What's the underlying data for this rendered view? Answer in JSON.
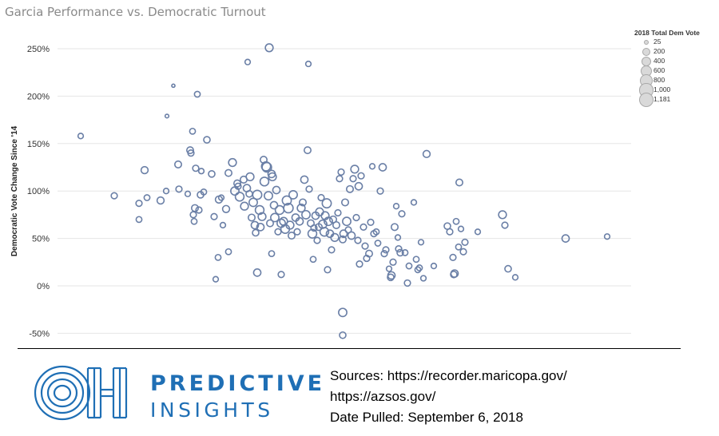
{
  "title": "Garcia Performance vs. Democratic Turnout",
  "chart_data": {
    "type": "scatter",
    "title": "Garcia Performance vs. Democratic Turnout",
    "xlabel": "",
    "ylabel": "Democratic Vote Change Since '14",
    "y_ticks": [
      250,
      200,
      150,
      100,
      50,
      0,
      -50
    ],
    "y_tick_labels": [
      "250%",
      "200%",
      "150%",
      "100%",
      "50%",
      "0%",
      "-50%"
    ],
    "ylim": [
      -62,
      264
    ],
    "x_axis_labels_shown": false,
    "grid": true,
    "legend": {
      "title": "2018 Total Dem Vote",
      "placement": "top-right",
      "entries": [
        "25",
        "200",
        "400",
        "600",
        "800",
        "1,000",
        "1,181"
      ]
    },
    "color": "#6a7fa6",
    "points": [
      [
        101,
        158,
        200
      ],
      [
        143,
        95,
        300
      ],
      [
        174,
        70,
        250
      ],
      [
        181,
        122,
        450
      ],
      [
        184,
        93,
        250
      ],
      [
        174,
        87,
        300
      ],
      [
        201,
        90,
        450
      ],
      [
        208,
        100,
        200
      ],
      [
        209,
        179,
        50
      ],
      [
        217,
        211,
        25
      ],
      [
        223,
        128,
        400
      ],
      [
        224,
        102,
        300
      ],
      [
        235,
        97,
        200
      ],
      [
        238,
        143,
        400
      ],
      [
        239,
        140,
        300
      ],
      [
        241,
        163,
        250
      ],
      [
        247,
        202,
        250
      ],
      [
        245,
        124,
        300
      ],
      [
        242,
        75,
        300
      ],
      [
        243,
        68,
        250
      ],
      [
        244,
        82,
        400
      ],
      [
        249,
        80,
        300
      ],
      [
        251,
        96,
        350
      ],
      [
        252,
        121,
        200
      ],
      [
        255,
        99,
        250
      ],
      [
        259,
        154,
        350
      ],
      [
        265,
        118,
        350
      ],
      [
        268,
        73,
        300
      ],
      [
        274,
        91,
        450
      ],
      [
        277,
        93,
        200
      ],
      [
        279,
        64,
        200
      ],
      [
        283,
        81,
        450
      ],
      [
        286,
        119,
        400
      ],
      [
        291,
        130,
        600
      ],
      [
        294,
        100,
        700
      ],
      [
        297,
        108,
        400
      ],
      [
        298,
        105,
        300
      ],
      [
        300,
        94,
        800
      ],
      [
        305,
        112,
        400
      ],
      [
        306,
        84,
        600
      ],
      [
        309,
        103,
        500
      ],
      [
        312,
        97,
        350
      ],
      [
        313,
        115,
        600
      ],
      [
        315,
        72,
        400
      ],
      [
        317,
        88,
        700
      ],
      [
        319,
        64,
        500
      ],
      [
        320,
        56,
        350
      ],
      [
        322,
        96,
        900
      ],
      [
        325,
        80,
        800
      ],
      [
        326,
        62,
        500
      ],
      [
        328,
        73,
        600
      ],
      [
        330,
        133,
        400
      ],
      [
        331,
        110,
        800
      ],
      [
        333,
        126,
        900
      ],
      [
        334,
        125,
        1000
      ],
      [
        336,
        95,
        700
      ],
      [
        338,
        66,
        400
      ],
      [
        340,
        118,
        500
      ],
      [
        341,
        115,
        600
      ],
      [
        343,
        85,
        500
      ],
      [
        344,
        72,
        700
      ],
      [
        346,
        101,
        500
      ],
      [
        348,
        57,
        300
      ],
      [
        350,
        80,
        800
      ],
      [
        352,
        66,
        700
      ],
      [
        355,
        68,
        600
      ],
      [
        357,
        60,
        800
      ],
      [
        359,
        90,
        900
      ],
      [
        361,
        82,
        1000
      ],
      [
        363,
        64,
        600
      ],
      [
        365,
        53,
        400
      ],
      [
        367,
        96,
        700
      ],
      [
        370,
        72,
        500
      ],
      [
        372,
        57,
        300
      ],
      [
        375,
        68,
        500
      ],
      [
        377,
        82,
        600
      ],
      [
        379,
        88,
        400
      ],
      [
        381,
        112,
        500
      ],
      [
        383,
        75,
        700
      ],
      [
        385,
        143,
        400
      ],
      [
        387,
        102,
        300
      ],
      [
        389,
        66,
        400
      ],
      [
        391,
        55,
        800
      ],
      [
        393,
        61,
        300
      ],
      [
        395,
        74,
        500
      ],
      [
        397,
        48,
        300
      ],
      [
        399,
        62,
        400
      ],
      [
        400,
        78,
        600
      ],
      [
        402,
        93,
        300
      ],
      [
        404,
        65,
        700
      ],
      [
        406,
        57,
        800
      ],
      [
        407,
        74,
        600
      ],
      [
        409,
        87,
        900
      ],
      [
        411,
        68,
        700
      ],
      [
        413,
        55,
        500
      ],
      [
        415,
        38,
        300
      ],
      [
        417,
        70,
        400
      ],
      [
        419,
        51,
        600
      ],
      [
        421,
        64,
        400
      ],
      [
        423,
        77,
        300
      ],
      [
        425,
        113,
        300
      ],
      [
        427,
        120,
        300
      ],
      [
        429,
        49,
        400
      ],
      [
        430,
        55,
        500
      ],
      [
        432,
        88,
        400
      ],
      [
        434,
        68,
        700
      ],
      [
        436,
        59,
        300
      ],
      [
        438,
        102,
        400
      ],
      [
        440,
        53,
        500
      ],
      [
        442,
        113,
        300
      ],
      [
        444,
        123,
        600
      ],
      [
        446,
        72,
        300
      ],
      [
        448,
        48,
        300
      ],
      [
        449,
        105,
        500
      ],
      [
        450,
        23,
        300
      ],
      [
        452,
        116,
        300
      ],
      [
        455,
        62,
        300
      ],
      [
        457,
        42,
        300
      ],
      [
        459,
        29,
        300
      ],
      [
        462,
        34,
        400
      ],
      [
        464,
        67,
        300
      ],
      [
        466,
        126,
        200
      ],
      [
        468,
        55,
        300
      ],
      [
        471,
        57,
        250
      ],
      [
        473,
        45,
        250
      ],
      [
        476,
        100,
        300
      ],
      [
        479,
        125,
        500
      ],
      [
        481,
        34,
        300
      ],
      [
        483,
        38,
        300
      ],
      [
        487,
        18,
        200
      ],
      [
        489,
        9,
        350
      ],
      [
        490,
        11,
        500
      ],
      [
        492,
        25,
        300
      ],
      [
        494,
        62,
        400
      ],
      [
        496,
        84,
        200
      ],
      [
        498,
        51,
        200
      ],
      [
        499,
        39,
        300
      ],
      [
        501,
        35,
        350
      ],
      [
        503,
        76,
        300
      ],
      [
        507,
        35,
        250
      ],
      [
        510,
        3,
        300
      ],
      [
        512,
        21,
        250
      ],
      [
        518,
        88,
        200
      ],
      [
        521,
        28,
        250
      ],
      [
        523,
        17,
        250
      ],
      [
        525,
        19,
        250
      ],
      [
        527,
        46,
        200
      ],
      [
        530,
        8,
        200
      ],
      [
        534,
        139,
        450
      ],
      [
        543,
        21,
        200
      ],
      [
        560,
        63,
        350
      ],
      [
        563,
        57,
        300
      ],
      [
        567,
        30,
        300
      ],
      [
        568,
        12,
        350
      ],
      [
        569,
        13,
        500
      ],
      [
        571,
        68,
        250
      ],
      [
        574,
        41,
        250
      ],
      [
        575,
        109,
        400
      ],
      [
        577,
        60,
        200
      ],
      [
        580,
        36,
        300
      ],
      [
        582,
        46,
        300
      ],
      [
        598,
        57,
        200
      ],
      [
        629,
        75,
        600
      ],
      [
        632,
        64,
        300
      ],
      [
        636,
        18,
        350
      ],
      [
        645,
        9,
        200
      ],
      [
        708,
        50,
        500
      ],
      [
        760,
        52,
        200
      ],
      [
        270,
        7,
        200
      ],
      [
        273,
        30,
        250
      ],
      [
        286,
        36,
        250
      ],
      [
        310,
        236,
        200
      ],
      [
        322,
        14,
        500
      ],
      [
        337,
        251,
        600
      ],
      [
        340,
        34,
        250
      ],
      [
        352,
        12,
        300
      ],
      [
        386,
        234,
        200
      ],
      [
        392,
        28,
        250
      ],
      [
        410,
        17,
        300
      ],
      [
        429,
        -28,
        700
      ],
      [
        429,
        -52,
        350
      ]
    ]
  },
  "brand": {
    "line1": "PREDICTIVE",
    "line2": "INSIGHTS"
  },
  "sources": {
    "line1": "Sources: https://recorder.maricopa.gov/",
    "line2": "https://azsos.gov/",
    "line3": "Date Pulled: September 6, 2018"
  }
}
